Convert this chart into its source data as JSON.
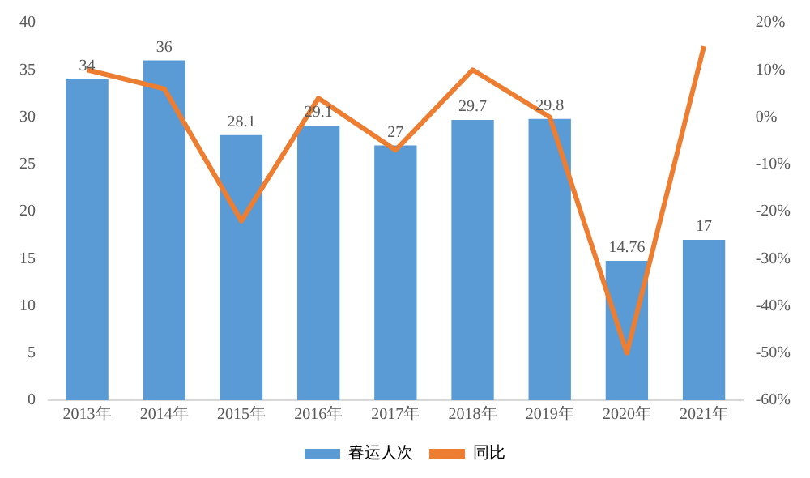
{
  "chart_data": {
    "type": "bar",
    "categories": [
      "2013年",
      "2014年",
      "2015年",
      "2016年",
      "2017年",
      "2018年",
      "2019年",
      "2020年",
      "2021年"
    ],
    "series": [
      {
        "name": "春运人次",
        "color": "#5b9bd5",
        "values": [
          34,
          36,
          28.1,
          29.1,
          27,
          29.7,
          29.8,
          14.76,
          17
        ],
        "data_labels": true
      },
      {
        "name": "同比",
        "type": "line",
        "axis": "y2",
        "color": "#ed7d31",
        "values": [
          10,
          6,
          -22,
          4,
          -7,
          10,
          0,
          -50,
          15
        ]
      }
    ],
    "ylim": [
      0,
      40
    ],
    "yticks": [
      0,
      5,
      10,
      15,
      20,
      25,
      30,
      35,
      40
    ],
    "y2lim": [
      -60,
      20
    ],
    "y2ticks": [
      {
        "value": -60,
        "label": "-60%"
      },
      {
        "value": -50,
        "label": "-50%"
      },
      {
        "value": -40,
        "label": "-40%"
      },
      {
        "value": -30,
        "label": "-30%"
      },
      {
        "value": -20,
        "label": "-20%"
      },
      {
        "value": -10,
        "label": "-10%"
      },
      {
        "value": 0,
        "label": "0%"
      },
      {
        "value": 10,
        "label": "10%"
      },
      {
        "value": 20,
        "label": "20%"
      }
    ],
    "grid": false,
    "legend": "bottom",
    "marker": "none"
  }
}
